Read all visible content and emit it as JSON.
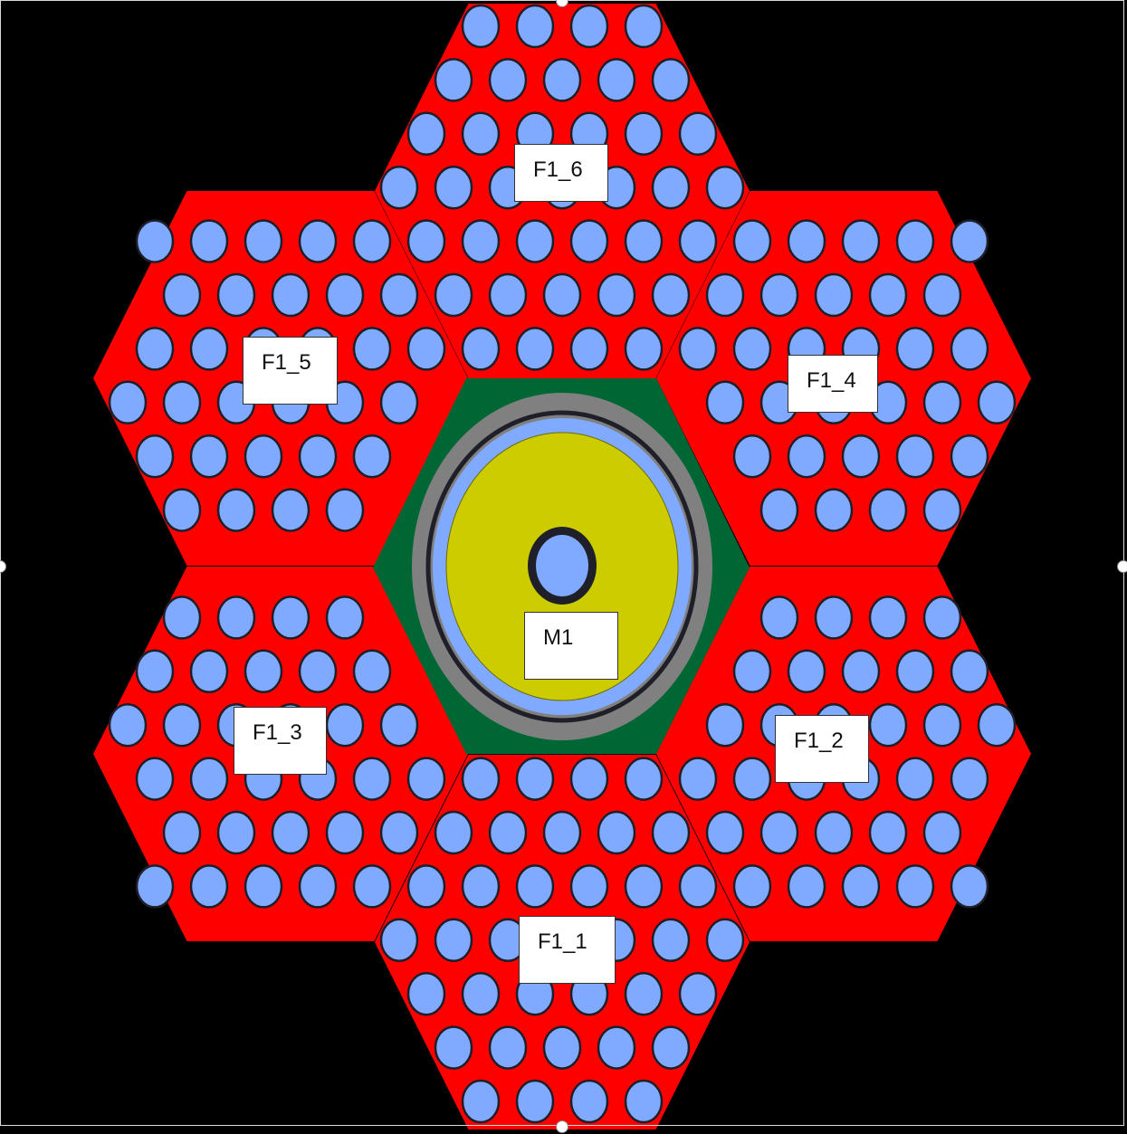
{
  "diagram": {
    "labels": {
      "f1_1": "F1_1",
      "f1_2": "F1_2",
      "f1_3": "F1_3",
      "f1_4": "F1_4",
      "f1_5": "F1_5",
      "f1_6": "F1_6",
      "m1": "M1"
    },
    "colors": {
      "background": "#000000",
      "fuel_block": "#ff0000",
      "pin": "#80aaff",
      "pin_outline": "#1f1f2a",
      "moderator_hex": "#006633",
      "gap_ring": "#808080",
      "liner_ring": "#1f1f2a",
      "coolant_ring": "#80aaff",
      "moderator_core": "#cccc00"
    }
  }
}
